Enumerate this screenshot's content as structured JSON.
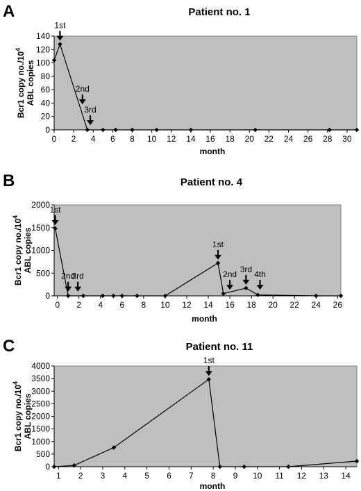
{
  "chart_data": [
    {
      "type": "line",
      "panel": "A",
      "title": "Patient no. 1",
      "xlabel": "month",
      "ylabel_line1": "Bcr1 copy no./10",
      "ylabel_sup": "4",
      "ylabel_line2": "ABL copies",
      "xlim": [
        0,
        31
      ],
      "ylim": [
        0,
        140
      ],
      "xticks": [
        0,
        2,
        4,
        6,
        8,
        10,
        12,
        14,
        16,
        18,
        20,
        22,
        24,
        26,
        28,
        30
      ],
      "yticks": [
        0,
        20,
        40,
        60,
        80,
        100,
        120,
        140
      ],
      "grid": false,
      "series": [
        {
          "x": [
            0,
            0.6,
            3.4,
            5.0,
            6.3,
            8.0,
            10.5,
            14.0,
            20.6,
            28.2,
            31.0
          ],
          "y": [
            104,
            128,
            0,
            0,
            0,
            0,
            0,
            0,
            0,
            0,
            0
          ]
        }
      ],
      "annotations": [
        {
          "text": "1st",
          "x": 0.6,
          "y": 128,
          "arrow": true
        },
        {
          "text": "2nd",
          "x": 2.9,
          "y": 33,
          "arrow": true
        },
        {
          "text": "3rd",
          "x": 3.7,
          "y": 2,
          "arrow": true
        }
      ]
    },
    {
      "type": "line",
      "panel": "B",
      "title": "Patient no. 4",
      "xlabel": "month",
      "ylabel_line1": "Bcr1 copy no./10",
      "ylabel_sup": "4",
      "ylabel_line2": "ABL copies",
      "xlim": [
        -0.3,
        26.3
      ],
      "ylim": [
        0,
        2000
      ],
      "xticks": [
        0,
        2,
        4,
        6,
        8,
        10,
        12,
        14,
        16,
        18,
        20,
        22,
        24,
        26
      ],
      "yticks": [
        0,
        500,
        1000,
        1500,
        2000
      ],
      "grid": false,
      "series": [
        {
          "x": [
            -0.2,
            1.0,
            2.4,
            4.2,
            5.2,
            6.0,
            7.4,
            10.0,
            14.9,
            15.4,
            17.5,
            18.6,
            24.0,
            26.3
          ],
          "y": [
            1480,
            0,
            0,
            0,
            0,
            0,
            0,
            0,
            720,
            50,
            170,
            20,
            0,
            0
          ]
        }
      ],
      "annotations": [
        {
          "text": "1st",
          "x": -0.2,
          "y": 1480,
          "arrow": true
        },
        {
          "text": "2nd",
          "x": 1.0,
          "y": 20,
          "arrow": true
        },
        {
          "text": "3rd",
          "x": 1.9,
          "y": 20,
          "arrow": true
        },
        {
          "text": "1st",
          "x": 14.9,
          "y": 720,
          "arrow": true
        },
        {
          "text": "2nd",
          "x": 16.0,
          "y": 60,
          "arrow": true
        },
        {
          "text": "3rd",
          "x": 17.5,
          "y": 170,
          "arrow": true
        },
        {
          "text": "4th",
          "x": 18.8,
          "y": 60,
          "arrow": true
        }
      ]
    },
    {
      "type": "line",
      "panel": "C",
      "title": "Patient no. 11",
      "xlabel": "month",
      "ylabel_line1": "Bcr1 copy no./10",
      "ylabel_sup": "4",
      "ylabel_line2": "ABL copies",
      "xlim": [
        0.8,
        14.5
      ],
      "ylim": [
        0,
        4000
      ],
      "xticks": [
        1,
        2,
        3,
        4,
        5,
        6,
        7,
        8,
        9,
        10,
        11,
        12,
        13,
        14
      ],
      "yticks": [
        0,
        500,
        1000,
        1500,
        2000,
        2500,
        3000,
        3500,
        4000
      ],
      "grid": false,
      "series": [
        {
          "x": [
            0.8,
            1.7,
            3.5,
            7.8,
            8.3,
            9.4,
            11.4,
            14.5
          ],
          "y": [
            0,
            50,
            760,
            3470,
            0,
            0,
            0,
            220
          ]
        }
      ],
      "annotations": [
        {
          "text": "1st",
          "x": 7.8,
          "y": 3470,
          "arrow": true
        }
      ]
    }
  ]
}
